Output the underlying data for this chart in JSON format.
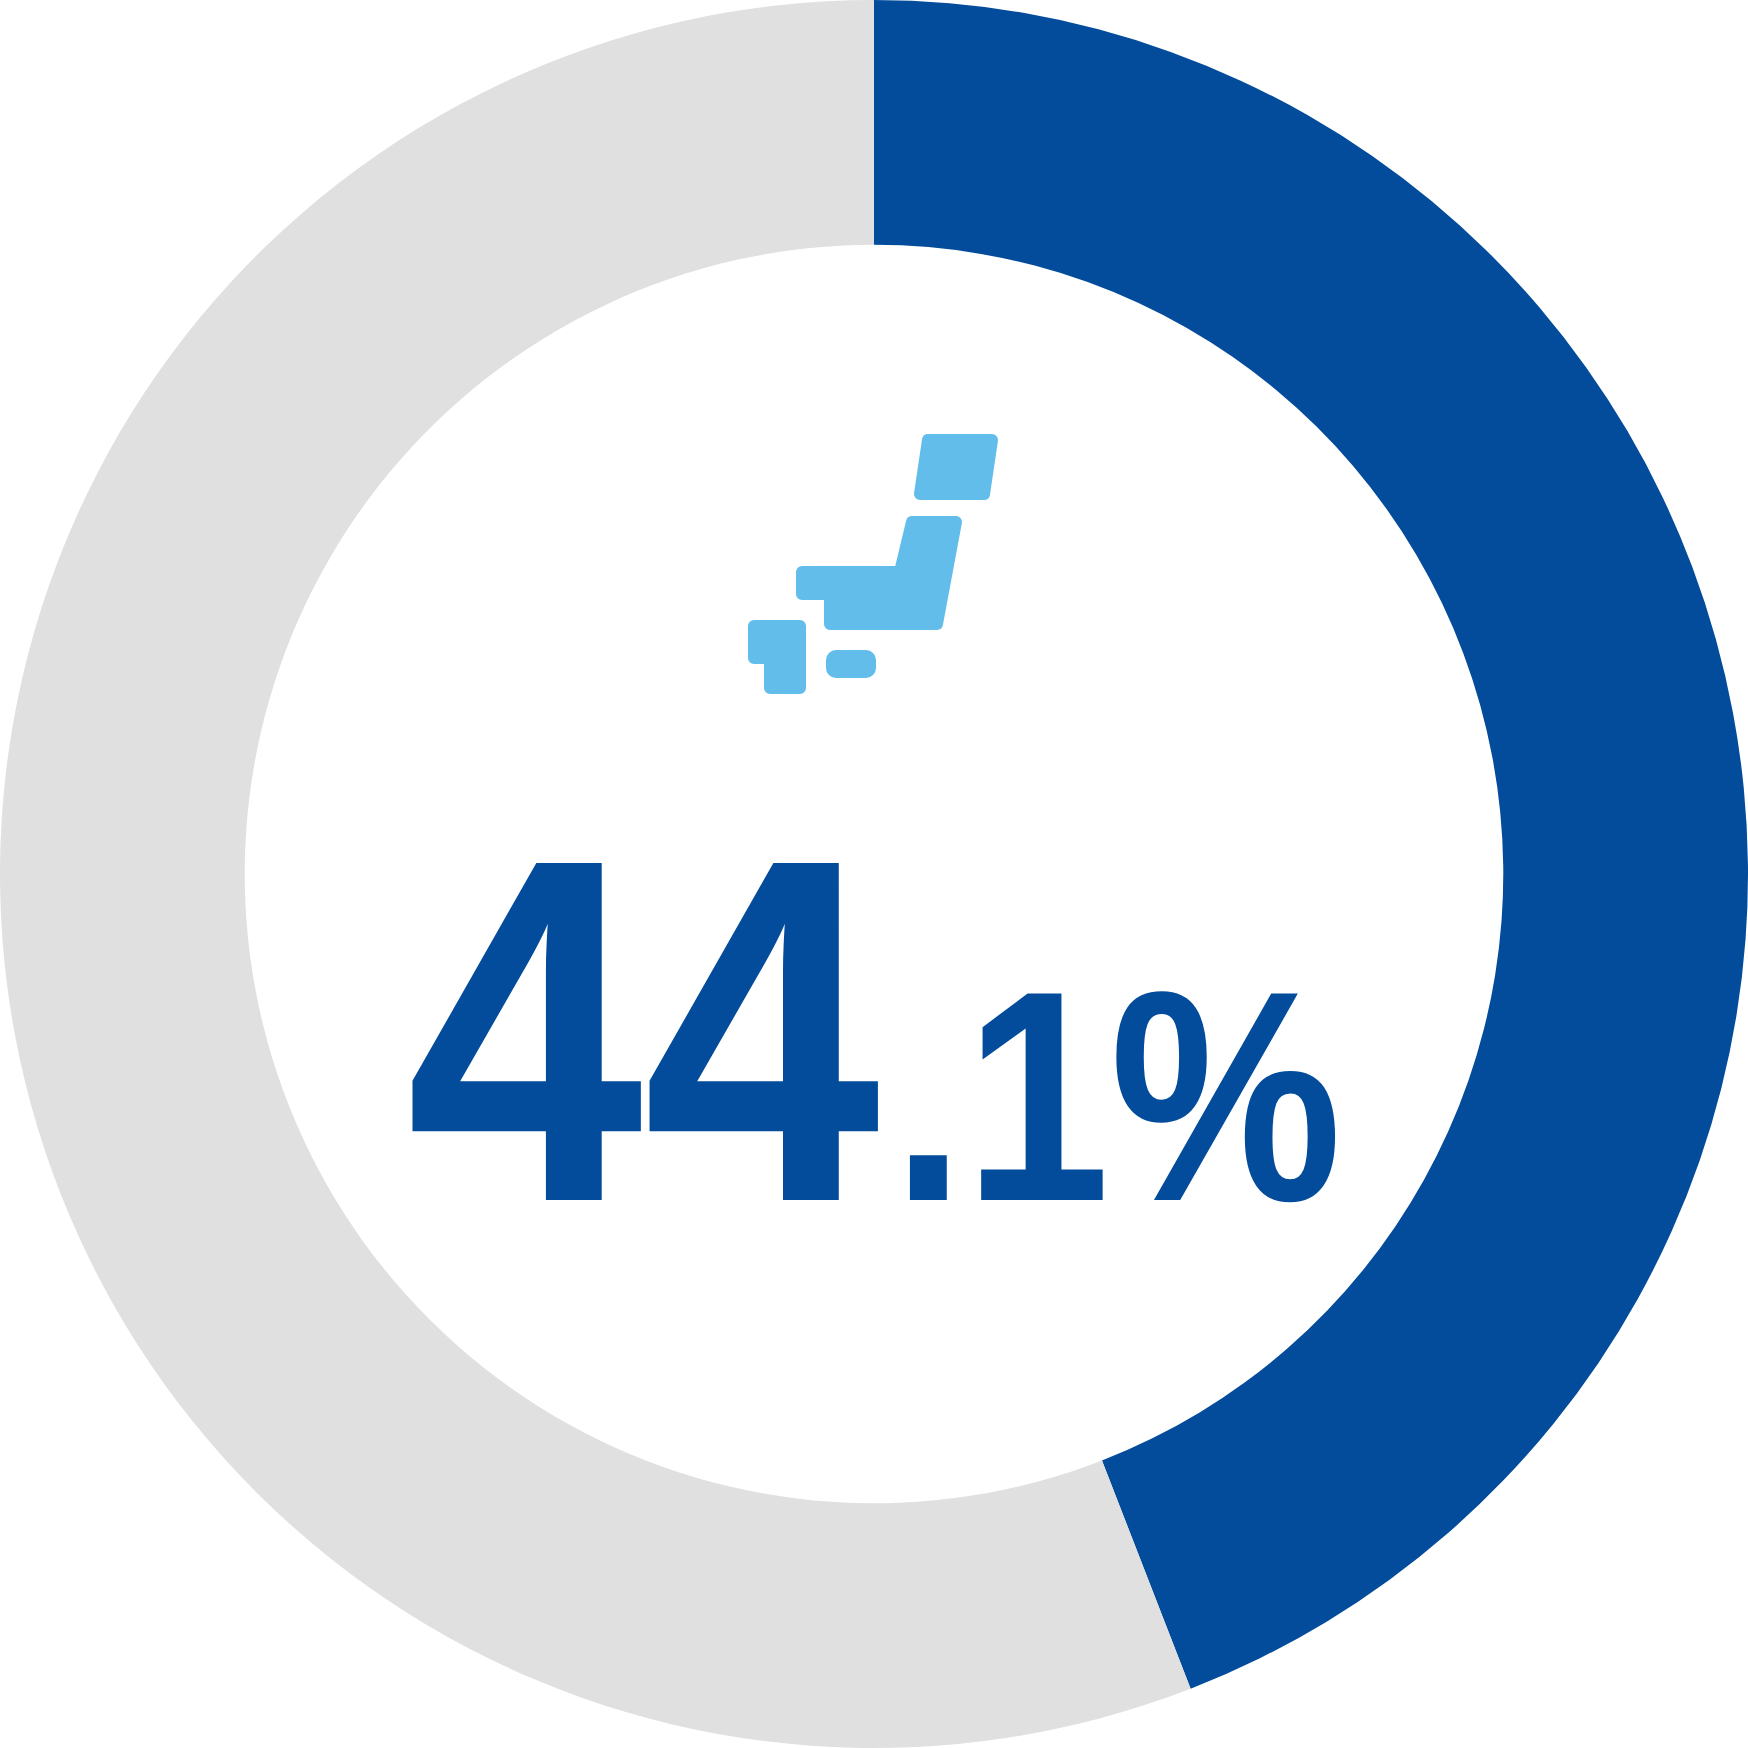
{
  "chart_data": {
    "type": "donut",
    "categories": [
      null,
      null
    ],
    "values": [
      44.1,
      55.9
    ],
    "colors": [
      "#034c9c",
      "#e0e0e0"
    ],
    "value_labels": [
      "44.1%",
      null
    ]
  }
}
